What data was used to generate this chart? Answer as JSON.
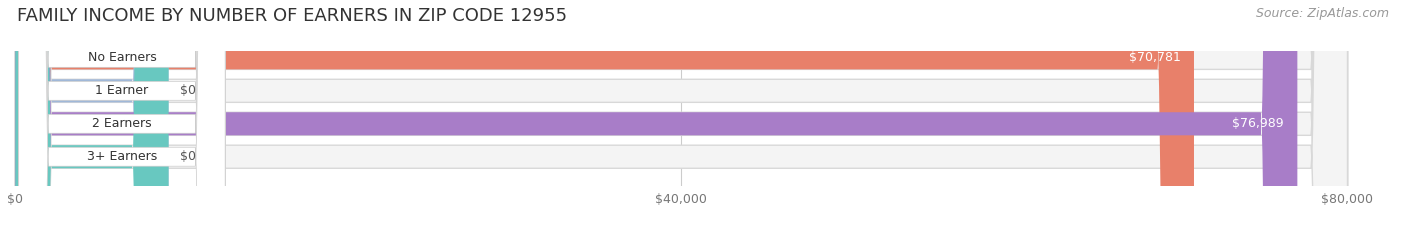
{
  "title": "FAMILY INCOME BY NUMBER OF EARNERS IN ZIP CODE 12955",
  "source": "Source: ZipAtlas.com",
  "categories": [
    "No Earners",
    "1 Earner",
    "2 Earners",
    "3+ Earners"
  ],
  "values": [
    70781,
    0,
    76989,
    0
  ],
  "bar_colors": [
    "#E8806A",
    "#A0B8D8",
    "#A87DC8",
    "#68C8C0"
  ],
  "label_values": [
    "$70,781",
    "$0",
    "$76,989",
    "$0"
  ],
  "xlim_max": 80000,
  "xticks": [
    0,
    40000,
    80000
  ],
  "xticklabels": [
    "$0",
    "$40,000",
    "$80,000"
  ],
  "background_color": "#FFFFFF",
  "row_bg_color": "#F0F0F0",
  "title_fontsize": 13,
  "source_fontsize": 9,
  "bar_label_fontsize": 9,
  "cat_label_fontsize": 9
}
